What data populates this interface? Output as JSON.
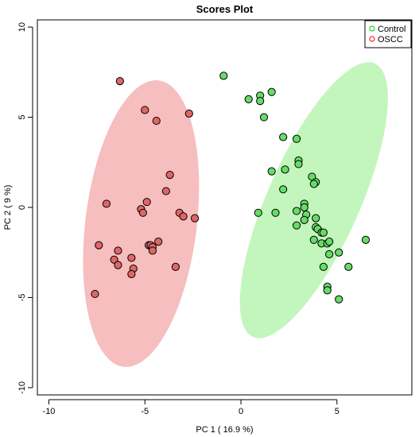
{
  "chart_data": {
    "type": "scatter",
    "title": "Scores Plot",
    "xlabel": "PC 1 ( 16.9 %)",
    "ylabel": "PC 2 ( 9 %)",
    "xlim": [
      -10.6,
      8.9
    ],
    "ylim": [
      -10.4,
      10.4
    ],
    "xticks": [
      -10,
      -5,
      0,
      5
    ],
    "yticks": [
      -10,
      -5,
      0,
      5,
      10
    ],
    "grid": false,
    "legend_position": "top-right",
    "series": [
      {
        "name": "Control",
        "color": "#00cc00",
        "fill": "#66dd66",
        "ellipse_fill": "#b8f5b0",
        "points": [
          [
            -0.9,
            7.3
          ],
          [
            0.4,
            6.0
          ],
          [
            1.0,
            6.2
          ],
          [
            1.6,
            6.4
          ],
          [
            1.0,
            5.9
          ],
          [
            1.2,
            5.0
          ],
          [
            2.2,
            3.9
          ],
          [
            2.9,
            3.8
          ],
          [
            3.0,
            2.6
          ],
          [
            3.0,
            2.4
          ],
          [
            1.6,
            2.0
          ],
          [
            2.3,
            2.1
          ],
          [
            3.7,
            1.7
          ],
          [
            3.9,
            1.4
          ],
          [
            3.8,
            1.3
          ],
          [
            2.2,
            1.0
          ],
          [
            3.3,
            0.2
          ],
          [
            3.3,
            0.0
          ],
          [
            0.9,
            -0.3
          ],
          [
            1.8,
            -0.3
          ],
          [
            2.9,
            -0.2
          ],
          [
            3.4,
            -0.4
          ],
          [
            3.3,
            -0.7
          ],
          [
            3.9,
            -0.6
          ],
          [
            2.9,
            -1.0
          ],
          [
            3.9,
            -1.1
          ],
          [
            4.0,
            -1.2
          ],
          [
            4.2,
            -1.4
          ],
          [
            4.3,
            -1.4
          ],
          [
            3.8,
            -1.8
          ],
          [
            4.2,
            -2.0
          ],
          [
            4.5,
            -2.0
          ],
          [
            4.6,
            -1.9
          ],
          [
            4.6,
            -2.6
          ],
          [
            5.1,
            -2.5
          ],
          [
            6.5,
            -1.8
          ],
          [
            4.3,
            -3.3
          ],
          [
            5.6,
            -3.3
          ],
          [
            4.5,
            -4.4
          ],
          [
            4.5,
            -4.6
          ],
          [
            5.1,
            -5.1
          ]
        ]
      },
      {
        "name": "OSCC",
        "color": "#ff0000",
        "fill": "#e06666",
        "ellipse_fill": "#f5b3b3",
        "points": [
          [
            -6.3,
            7.0
          ],
          [
            -5.0,
            5.4
          ],
          [
            -4.4,
            4.8
          ],
          [
            -2.7,
            5.2
          ],
          [
            -3.7,
            1.8
          ],
          [
            -3.9,
            0.9
          ],
          [
            -4.9,
            0.3
          ],
          [
            -7.0,
            0.2
          ],
          [
            -5.2,
            -0.1
          ],
          [
            -5.1,
            -0.3
          ],
          [
            -3.2,
            -0.3
          ],
          [
            -3.0,
            -0.5
          ],
          [
            -2.4,
            -0.6
          ],
          [
            -7.4,
            -2.1
          ],
          [
            -6.4,
            -2.4
          ],
          [
            -4.8,
            -2.1
          ],
          [
            -4.7,
            -2.1
          ],
          [
            -4.6,
            -2.2
          ],
          [
            -4.6,
            -2.4
          ],
          [
            -4.3,
            -1.9
          ],
          [
            -5.7,
            -2.8
          ],
          [
            -6.6,
            -2.9
          ],
          [
            -6.4,
            -3.2
          ],
          [
            -5.6,
            -3.4
          ],
          [
            -5.7,
            -3.7
          ],
          [
            -3.4,
            -3.3
          ],
          [
            -7.6,
            -4.8
          ]
        ]
      }
    ],
    "ellipses": [
      {
        "series": "Control",
        "cx": 3.8,
        "cy": 0.4,
        "rx": 2.4,
        "ry": 8.3,
        "angle_deg": 24
      },
      {
        "series": "OSCC",
        "cx": -5.2,
        "cy": -0.9,
        "rx": 2.9,
        "ry": 8.0,
        "angle_deg": 7
      }
    ]
  }
}
